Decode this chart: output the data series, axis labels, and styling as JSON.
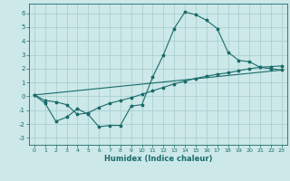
{
  "xlabel": "Humidex (Indice chaleur)",
  "background_color": "#cce8e8",
  "grid_color": "#aad0d0",
  "line_color": "#1a6b6b",
  "xlim": [
    -0.5,
    23.5
  ],
  "ylim": [
    -3.5,
    6.7
  ],
  "xticks": [
    0,
    1,
    2,
    3,
    4,
    5,
    6,
    7,
    8,
    9,
    10,
    11,
    12,
    13,
    14,
    15,
    16,
    17,
    18,
    19,
    20,
    21,
    22,
    23
  ],
  "yticks": [
    -3,
    -2,
    -1,
    0,
    1,
    2,
    3,
    4,
    5,
    6
  ],
  "line1_x": [
    0,
    1,
    2,
    3,
    4,
    5,
    6,
    7,
    8,
    9,
    10,
    11,
    12,
    13,
    14,
    15,
    16,
    17,
    18,
    19,
    20,
    21,
    22,
    23
  ],
  "line1_y": [
    0.1,
    -0.5,
    -1.8,
    -1.5,
    -0.9,
    -1.3,
    -2.2,
    -2.1,
    -2.1,
    -0.7,
    -0.6,
    1.4,
    3.0,
    4.9,
    6.1,
    5.9,
    5.5,
    4.9,
    3.2,
    2.6,
    2.5,
    2.1,
    2.0,
    1.9
  ],
  "line2_x": [
    0,
    1,
    2,
    3,
    4,
    5,
    6,
    7,
    8,
    9,
    10,
    11,
    12,
    13,
    14,
    15,
    16,
    17,
    18,
    19,
    20,
    21,
    22,
    23
  ],
  "line2_y": [
    0.1,
    -0.3,
    -0.4,
    -0.6,
    -1.3,
    -1.2,
    -0.8,
    -0.5,
    -0.3,
    -0.1,
    0.15,
    0.4,
    0.65,
    0.9,
    1.1,
    1.3,
    1.45,
    1.6,
    1.7,
    1.85,
    2.0,
    2.1,
    2.15,
    2.2
  ],
  "line3_x": [
    0,
    23
  ],
  "line3_y": [
    0.1,
    1.9
  ]
}
